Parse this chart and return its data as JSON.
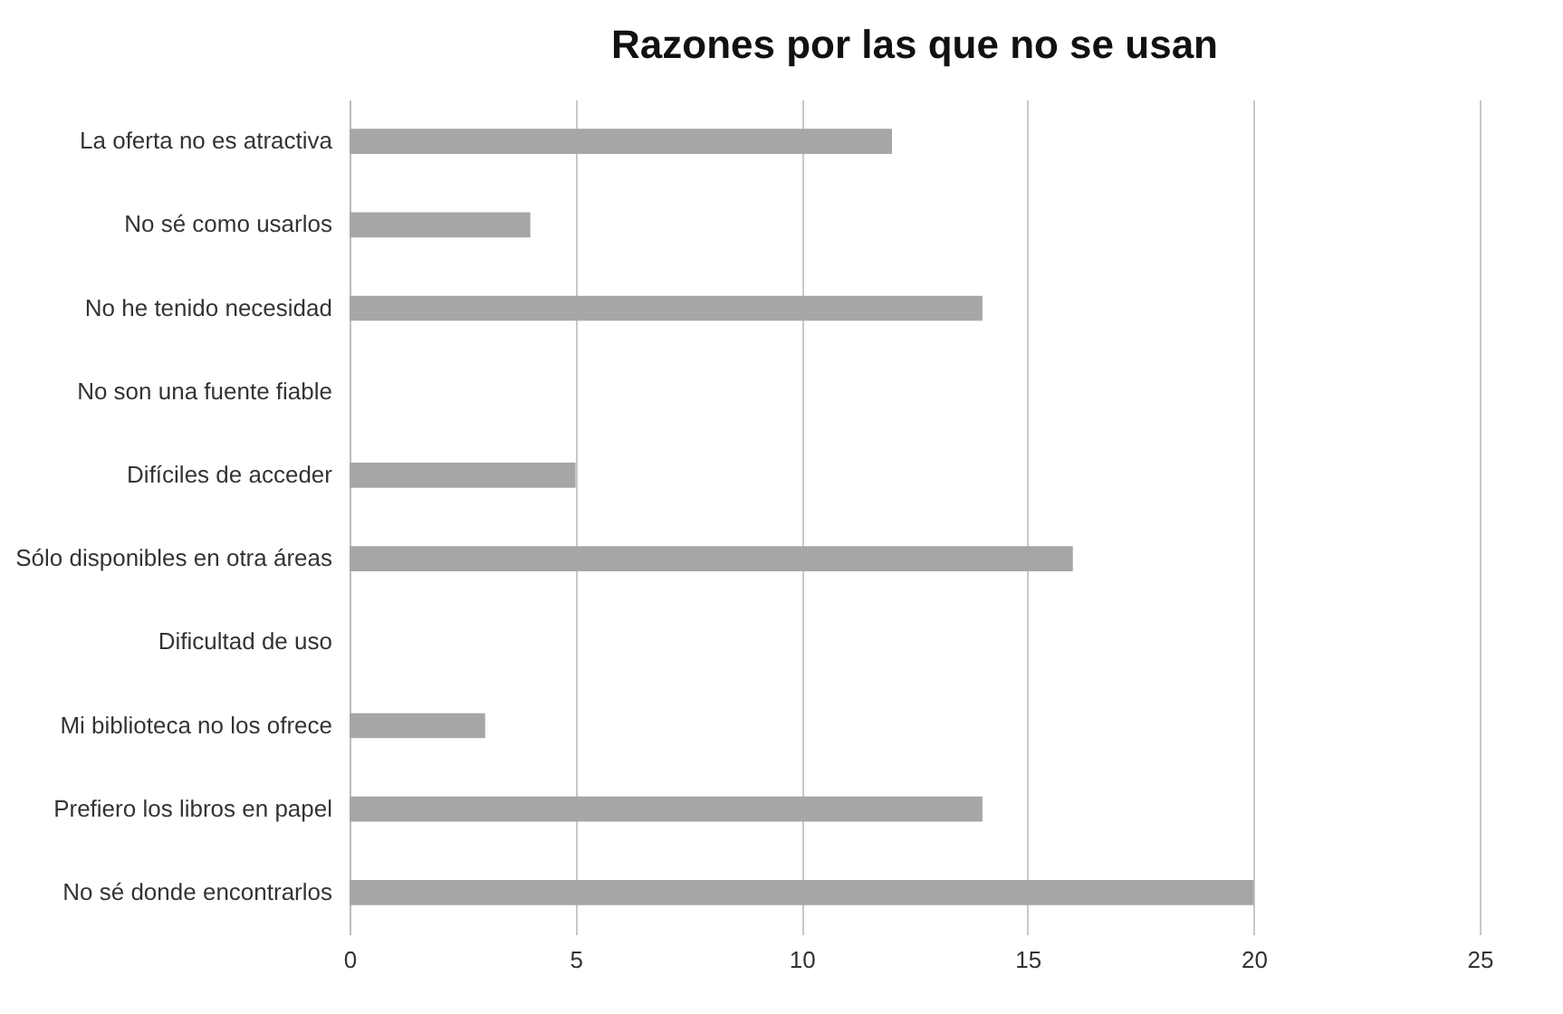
{
  "chart_data": {
    "type": "bar",
    "orientation": "horizontal",
    "title": "Razones por las que no se usan",
    "categories": [
      "La oferta no es atractiva",
      "No sé como usarlos",
      "No he tenido necesidad",
      "No son una fuente fiable",
      "Difíciles de acceder",
      "Sólo disponibles en otra áreas",
      "Dificultad de uso",
      "Mi biblioteca no los ofrece",
      "Prefiero los libros en papel",
      "No sé donde encontrarlos"
    ],
    "values": [
      12,
      4,
      14,
      0,
      5,
      16,
      0,
      3,
      14,
      20
    ],
    "color": "#a6a6a6",
    "xlim": [
      0,
      25
    ],
    "xticks": [
      0,
      5,
      10,
      15,
      20,
      25
    ],
    "grid": "x"
  }
}
